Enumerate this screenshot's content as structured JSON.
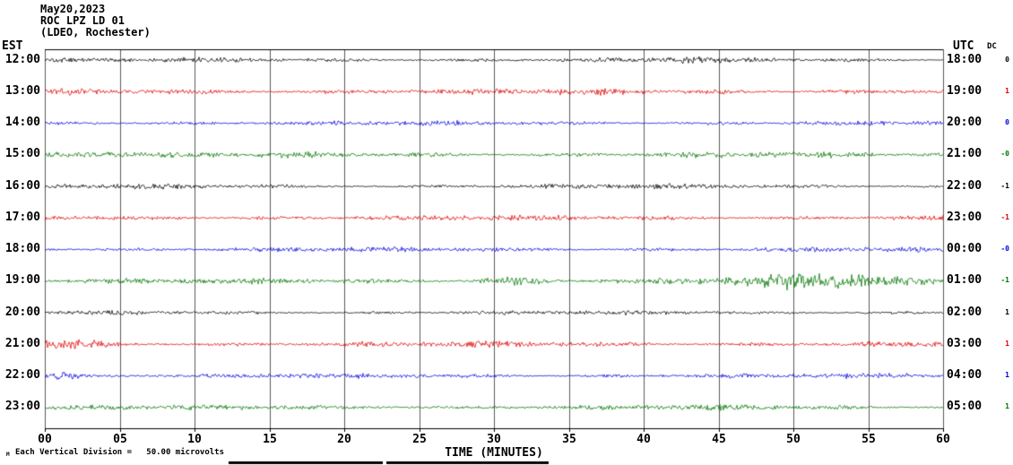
{
  "header": {
    "date": "May20,2023",
    "station": "ROC LPZ LD 01",
    "network": "(LDEO, Rochester)"
  },
  "axes": {
    "left_timezone": "EST",
    "right_timezone": "UTC",
    "dc_label": "DC",
    "xlabel": "TIME (MINUTES)",
    "x_ticks": [
      "00",
      "05",
      "10",
      "15",
      "20",
      "25",
      "30",
      "35",
      "40",
      "45",
      "50",
      "55",
      "60"
    ]
  },
  "footer": {
    "marker": "M",
    "note": "Each Vertical Division =   50.00 microvolts"
  },
  "chart_data": {
    "type": "line",
    "subtype": "helicorder-seismogram",
    "title": "ROC LPZ LD 01 (LDEO, Rochester) May20,2023",
    "xlabel": "TIME (MINUTES)",
    "x_range_minutes": [
      0,
      60
    ],
    "x_tick_interval_minutes": 5,
    "minutes_per_row": 60,
    "vertical_division_microvolts": 50.0,
    "grid": true,
    "trace_color_cycle": [
      "#000000",
      "#e00000",
      "#0000dd",
      "#007700"
    ],
    "rows": [
      {
        "est": "12:00",
        "utc": "18:00",
        "dc": "0",
        "color": "#000000",
        "base_amp": 2.2,
        "bursts": [
          {
            "center": 43,
            "width": 1.0,
            "amp": 1.5
          }
        ]
      },
      {
        "est": "13:00",
        "utc": "19:00",
        "dc": "1",
        "color": "#e00000",
        "base_amp": 2.8,
        "bursts": []
      },
      {
        "est": "14:00",
        "utc": "20:00",
        "dc": "0",
        "color": "#0000dd",
        "base_amp": 2.2,
        "bursts": []
      },
      {
        "est": "15:00",
        "utc": "21:00",
        "dc": "-0",
        "color": "#007700",
        "base_amp": 2.6,
        "bursts": [
          {
            "center": 3,
            "width": 2.0,
            "amp": 1.5
          }
        ]
      },
      {
        "est": "16:00",
        "utc": "22:00",
        "dc": "-1",
        "color": "#000000",
        "base_amp": 2.2,
        "bursts": []
      },
      {
        "est": "17:00",
        "utc": "23:00",
        "dc": "-1",
        "color": "#e00000",
        "base_amp": 2.4,
        "bursts": []
      },
      {
        "est": "18:00",
        "utc": "00:00",
        "dc": "-0",
        "color": "#0000dd",
        "base_amp": 2.2,
        "bursts": []
      },
      {
        "est": "19:00",
        "utc": "01:00",
        "dc": "-1",
        "color": "#007700",
        "base_amp": 2.6,
        "bursts": [
          {
            "center": 31,
            "width": 1.5,
            "amp": 2.5
          },
          {
            "center": 52,
            "width": 4.0,
            "amp": 5.5
          }
        ]
      },
      {
        "est": "20:00",
        "utc": "02:00",
        "dc": "1",
        "color": "#000000",
        "base_amp": 2.0,
        "bursts": []
      },
      {
        "est": "21:00",
        "utc": "03:00",
        "dc": "1",
        "color": "#e00000",
        "base_amp": 2.6,
        "bursts": [
          {
            "center": 1.5,
            "width": 1.5,
            "amp": 3.0
          }
        ]
      },
      {
        "est": "22:00",
        "utc": "04:00",
        "dc": "1",
        "color": "#0000dd",
        "base_amp": 2.2,
        "bursts": [
          {
            "center": 1,
            "width": 1.0,
            "amp": 2.0
          }
        ]
      },
      {
        "est": "23:00",
        "utc": "05:00",
        "dc": "1",
        "color": "#007700",
        "base_amp": 2.4,
        "bursts": []
      }
    ]
  }
}
